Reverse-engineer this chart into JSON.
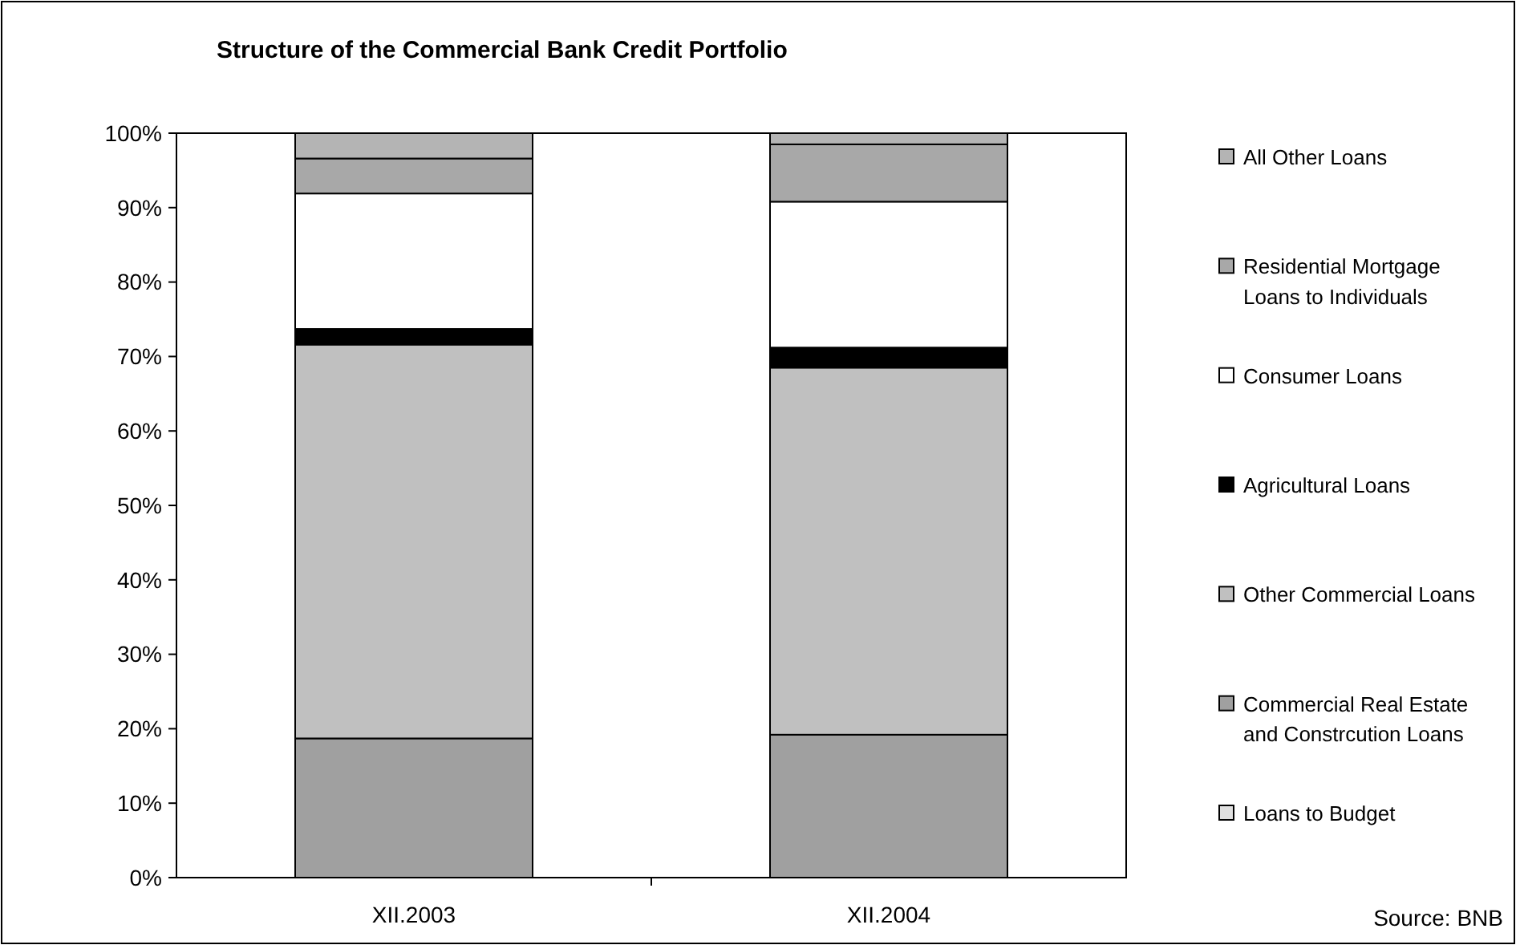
{
  "chart_data": {
    "type": "bar",
    "title": "Structure of the Commercial Bank Credit Portfolio",
    "categories": [
      "XII.2003",
      "XII.2004"
    ],
    "stacked": true,
    "ylim": [
      0,
      100
    ],
    "yticks": [
      {
        "value": 0,
        "label": "0%"
      },
      {
        "value": 10,
        "label": "10%"
      },
      {
        "value": 20,
        "label": "20%"
      },
      {
        "value": 30,
        "label": "30%"
      },
      {
        "value": 40,
        "label": "40%"
      },
      {
        "value": 50,
        "label": "50%"
      },
      {
        "value": 60,
        "label": "60%"
      },
      {
        "value": 70,
        "label": "70%"
      },
      {
        "value": 80,
        "label": "80%"
      },
      {
        "value": 90,
        "label": "90%"
      },
      {
        "value": 100,
        "label": "100%"
      }
    ],
    "legend": "right",
    "grid": false,
    "series": [
      {
        "name": "Loans to Budget",
        "color": "#e0e0e0",
        "values": [
          null,
          0
        ]
      },
      {
        "name": "Commercial Real Estate and Constrcution Loans",
        "color": "#a0a0a0",
        "values": [
          18.7,
          19.2
        ]
      },
      {
        "name": "Other Commercial Loans",
        "color": "#c0c0c0",
        "values": [
          52.9,
          49.3
        ]
      },
      {
        "name": "Agricultural Loans",
        "color": "#000000",
        "values": [
          2.1,
          2.7
        ]
      },
      {
        "name": "Consumer Loans",
        "color": "#ffffff",
        "values": [
          18.2,
          19.6
        ]
      },
      {
        "name": "Residential Mortgage Loans to Individuals",
        "color": "#a8a8a8",
        "values": [
          4.7,
          7.7
        ]
      },
      {
        "name": "All Other Loans",
        "color": "#b4b4b4",
        "values": [
          3.4,
          1.5
        ]
      }
    ],
    "annotations": [
      "Source: BNB"
    ]
  }
}
